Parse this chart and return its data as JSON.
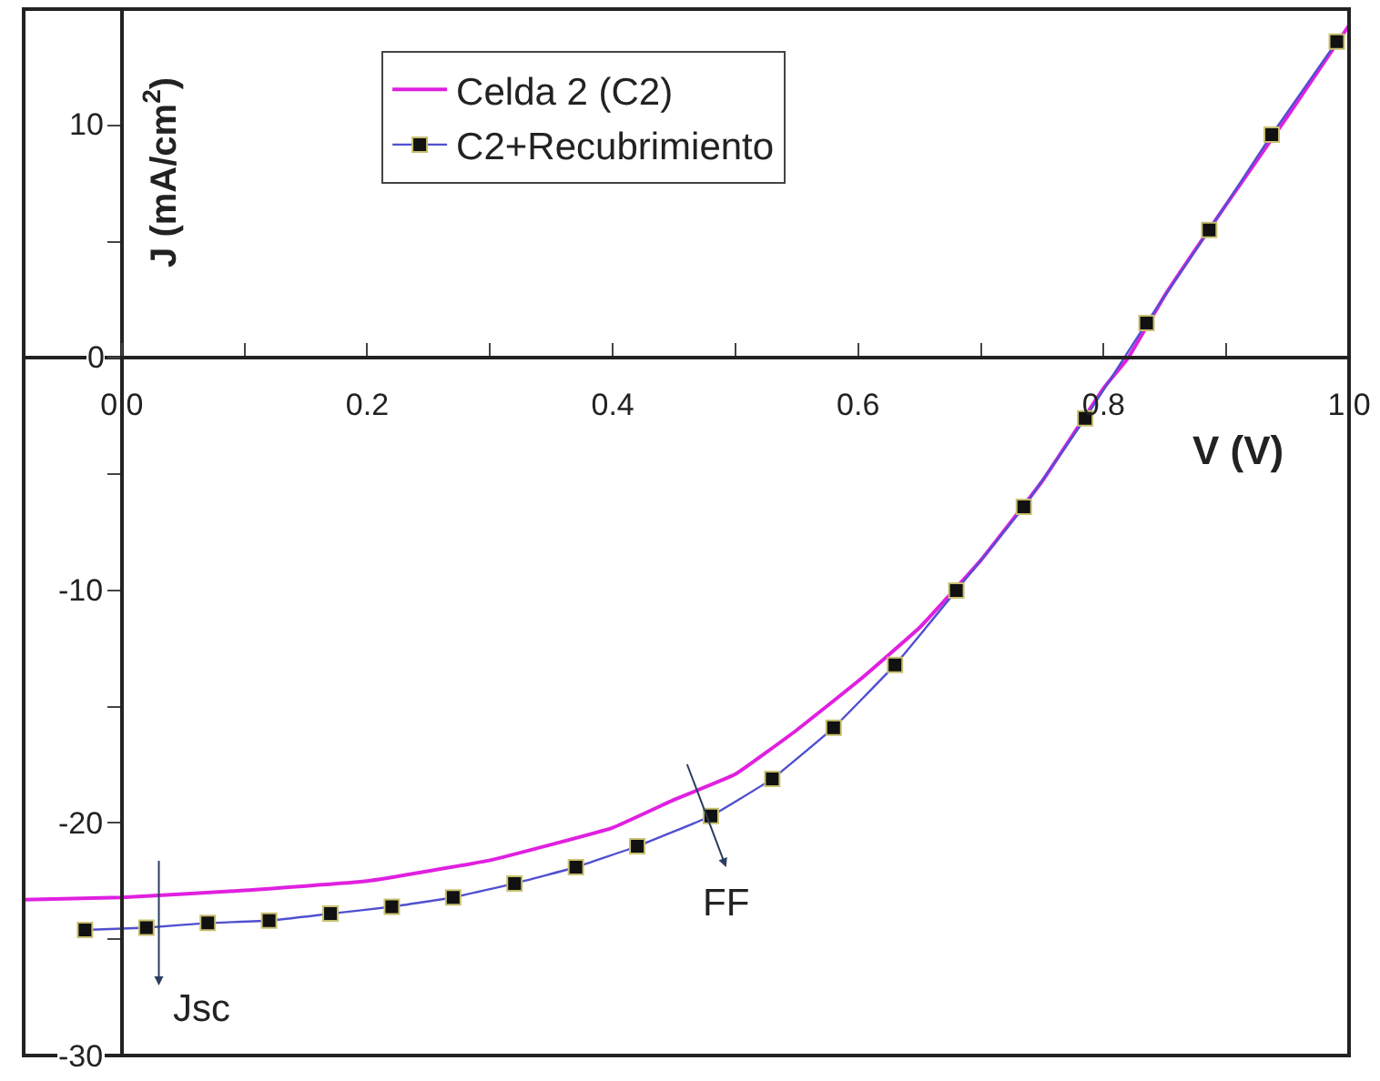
{
  "chart_data": {
    "type": "line",
    "xlabel": "V (V)",
    "ylabel": "J (mA/cm$^{2}$)",
    "xlim": [
      -0.08,
      1.0
    ],
    "ylim": [
      -30,
      15
    ],
    "xticks": [
      {
        "value": 0,
        "label": "0.0"
      },
      {
        "value": 0.1,
        "label": null
      },
      0.2,
      {
        "value": 0.3,
        "label": null
      },
      0.4,
      {
        "value": 0.5,
        "label": null
      },
      0.6,
      {
        "value": 0.7,
        "label": null
      },
      0.8,
      {
        "value": 0.9,
        "label": null
      },
      {
        "value": 1.0,
        "label": "1.0"
      }
    ],
    "yticks": [
      -30,
      {
        "value": -25,
        "label": null
      },
      -20,
      {
        "value": -15,
        "label": null
      },
      -10,
      {
        "value": -5,
        "label": null
      },
      0,
      {
        "value": 5,
        "label": null
      },
      10
    ],
    "legend": "top",
    "series": [
      {
        "name": "Celda 2 (C2)",
        "color": "#e020e0",
        "marker": "none",
        "x": [
          -0.08,
          0,
          0.1,
          0.2,
          0.3,
          0.4,
          0.45,
          0.5,
          0.55,
          0.6,
          0.65,
          0.7,
          0.75,
          0.8,
          0.82,
          0.85,
          0.9,
          0.95,
          1.0
        ],
        "values": [
          -23.3,
          -23.2,
          -22.9,
          -22.5,
          -21.6,
          -20.2,
          -19.0,
          -17.9,
          -16.0,
          -13.9,
          -11.6,
          -8.7,
          -5.3,
          -1.3,
          0,
          2.7,
          6.6,
          10.4,
          14.3
        ]
      },
      {
        "name": "C2+Recubrimiento",
        "color": "#5050d0",
        "marker": "square",
        "x": [
          -0.03,
          0.02,
          0.07,
          0.12,
          0.17,
          0.22,
          0.27,
          0.32,
          0.37,
          0.42,
          0.48,
          0.53,
          0.58,
          0.63,
          0.68,
          0.735,
          0.785,
          0.835,
          0.886,
          0.937,
          0.99
        ],
        "values": [
          -24.6,
          -24.5,
          -24.3,
          -24.2,
          -23.9,
          -23.6,
          -23.2,
          -22.6,
          -21.9,
          -21.0,
          -19.7,
          -18.1,
          -15.9,
          -13.2,
          -10.0,
          -6.4,
          -2.6,
          1.5,
          5.5,
          9.6,
          13.6
        ]
      }
    ],
    "annotations": [
      "Jsc",
      "FF"
    ]
  }
}
